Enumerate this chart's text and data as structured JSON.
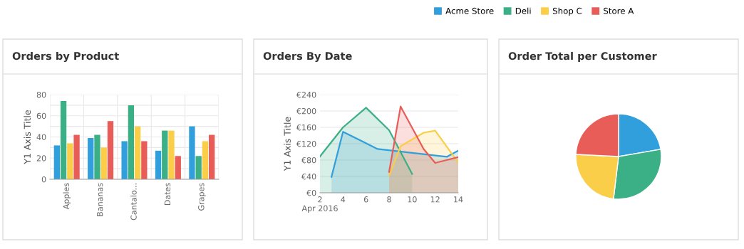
{
  "chart_data": [
    {
      "type": "bar",
      "title": "Orders by Product",
      "ylabel": "Y1 Axis Title",
      "categories": [
        "Apples",
        "Bananas",
        "Cantalo...",
        "Dates",
        "Grapes"
      ],
      "series": [
        {
          "name": "Acme Store",
          "color": "#309fdb",
          "values": [
            32,
            39,
            36,
            27,
            50
          ]
        },
        {
          "name": "Deli",
          "color": "#3baf85",
          "values": [
            74,
            42,
            70,
            46,
            22
          ]
        },
        {
          "name": "Shop C",
          "color": "#fbce4a",
          "values": [
            34,
            30,
            50,
            46,
            36
          ]
        },
        {
          "name": "Store A",
          "color": "#e85d58",
          "values": [
            42,
            55,
            36,
            22,
            42
          ]
        }
      ],
      "ylim": [
        0,
        80
      ],
      "yticks": [
        0,
        {
          "value": 10,
          "label": null
        },
        20,
        {
          "value": 30,
          "label": null
        },
        40,
        {
          "value": 50,
          "label": null
        },
        60,
        {
          "value": 70,
          "label": null
        },
        80
      ],
      "grid": "y",
      "legend": "top right"
    },
    {
      "type": "area",
      "title": "Orders By Date",
      "ylabel": "Y1 Axis Title",
      "series": [
        {
          "color": "#309fdb",
          "x": [
            "2016-04-03",
            "2016-04-04",
            "2016-04-07",
            "2016-04-13",
            "2016-04-14"
          ],
          "values": [
            39,
            149,
            107,
            88,
            103
          ]
        },
        {
          "color": "#3baf85",
          "x": [
            "2016-04-02",
            "2016-04-04",
            "2016-04-06",
            "2016-04-08",
            "2016-04-10"
          ],
          "values": [
            89,
            160,
            208,
            153,
            46
          ]
        },
        {
          "color": "#fbce4a",
          "x": [
            "2016-04-08",
            "2016-04-09",
            "2016-04-11",
            "2016-04-12",
            "2016-04-14"
          ],
          "values": [
            42,
            114,
            147,
            152,
            74
          ]
        },
        {
          "color": "#e85d58",
          "x": [
            "2016-04-08",
            "2016-04-09",
            "2016-04-11",
            "2016-04-12",
            "2016-04-14"
          ],
          "values": [
            51,
            211,
            107,
            73,
            87
          ]
        }
      ],
      "xlim": [
        "2016-04-02",
        "2016-04-14"
      ],
      "xticks": [
        {
          "value": "2016-04-02",
          "label": "2\nApr 2016"
        },
        {
          "value": "2016-04-04",
          "label": "4"
        },
        {
          "value": "2016-04-06",
          "label": "6"
        },
        {
          "value": "2016-04-08",
          "label": "8"
        },
        {
          "value": "2016-04-10",
          "label": "10"
        },
        {
          "value": "2016-04-12",
          "label": "12"
        },
        {
          "value": "2016-04-14",
          "label": "14"
        }
      ],
      "ylim": [
        0,
        240
      ],
      "yticks": [
        {
          "value": 0,
          "label": "€0"
        },
        {
          "value": 40,
          "label": "€40"
        },
        {
          "value": 80,
          "label": "€80"
        },
        {
          "value": 120,
          "label": "€120"
        },
        {
          "value": 160,
          "label": "€160"
        },
        {
          "value": 200,
          "label": "€200"
        },
        {
          "value": 240,
          "label": "€240"
        }
      ],
      "grid": "y"
    },
    {
      "type": "pie",
      "title": "Order Total per Customer",
      "categories": [
        null,
        null,
        null,
        null
      ],
      "values": [
        22.3,
        29.6,
        23.9,
        24.2
      ],
      "colors": [
        "#309fdb",
        "#3baf85",
        "#fbce4a",
        "#e85d58"
      ]
    }
  ]
}
